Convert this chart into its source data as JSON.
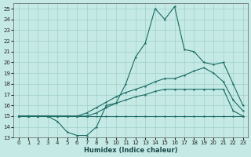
{
  "xlabel": "Humidex (Indice chaleur)",
  "xlim": [
    -0.5,
    23.5
  ],
  "ylim": [
    13,
    25.5
  ],
  "yticks": [
    13,
    14,
    15,
    16,
    17,
    18,
    19,
    20,
    21,
    22,
    23,
    24,
    25
  ],
  "xticks": [
    0,
    1,
    2,
    3,
    4,
    5,
    6,
    7,
    8,
    9,
    10,
    11,
    12,
    13,
    14,
    15,
    16,
    17,
    18,
    19,
    20,
    21,
    22,
    23
  ],
  "bg_color": "#c5eae6",
  "grid_color": "#a0cfc9",
  "line_color": "#1a6b63",
  "line1_x": [
    0,
    1,
    2,
    3,
    4,
    5,
    6,
    7,
    8,
    9,
    10,
    11,
    12,
    13,
    14,
    15,
    16,
    17,
    18,
    19,
    20,
    21,
    22,
    23
  ],
  "line1_y": [
    15,
    15,
    15,
    15,
    14.5,
    13.5,
    13.2,
    13.2,
    14.0,
    16.0,
    16.2,
    18.0,
    20.5,
    21.8,
    25.0,
    24.0,
    25.2,
    21.2,
    21.0,
    20.0,
    19.8,
    20.0,
    18.0,
    16.0
  ],
  "line2_x": [
    0,
    1,
    2,
    3,
    4,
    5,
    6,
    7,
    8,
    9,
    10,
    11,
    12,
    13,
    14,
    15,
    16,
    17,
    18,
    19,
    20,
    21,
    22,
    23
  ],
  "line2_y": [
    15,
    15,
    15,
    15,
    15,
    15,
    15,
    15,
    15,
    15,
    15,
    15,
    15,
    15,
    15,
    15,
    15,
    15,
    15,
    15,
    15,
    15,
    15,
    15
  ],
  "line3_x": [
    0,
    1,
    2,
    3,
    4,
    5,
    6,
    7,
    8,
    9,
    10,
    11,
    12,
    13,
    14,
    15,
    16,
    17,
    18,
    19,
    20,
    21,
    22,
    23
  ],
  "line3_y": [
    15,
    15,
    15,
    15,
    15,
    15,
    15,
    15.3,
    15.8,
    16.3,
    16.8,
    17.2,
    17.5,
    17.8,
    18.2,
    18.5,
    18.5,
    18.8,
    19.2,
    19.5,
    19.0,
    18.2,
    16.5,
    15.5
  ],
  "line4_x": [
    0,
    1,
    2,
    3,
    4,
    5,
    6,
    7,
    8,
    9,
    10,
    11,
    12,
    13,
    14,
    15,
    16,
    17,
    18,
    19,
    20,
    21,
    22,
    23
  ],
  "line4_y": [
    15,
    15,
    15,
    15,
    15,
    15,
    15,
    15,
    15.3,
    15.8,
    16.2,
    16.5,
    16.8,
    17.0,
    17.3,
    17.5,
    17.5,
    17.5,
    17.5,
    17.5,
    17.5,
    17.5,
    15.5,
    15.0
  ]
}
